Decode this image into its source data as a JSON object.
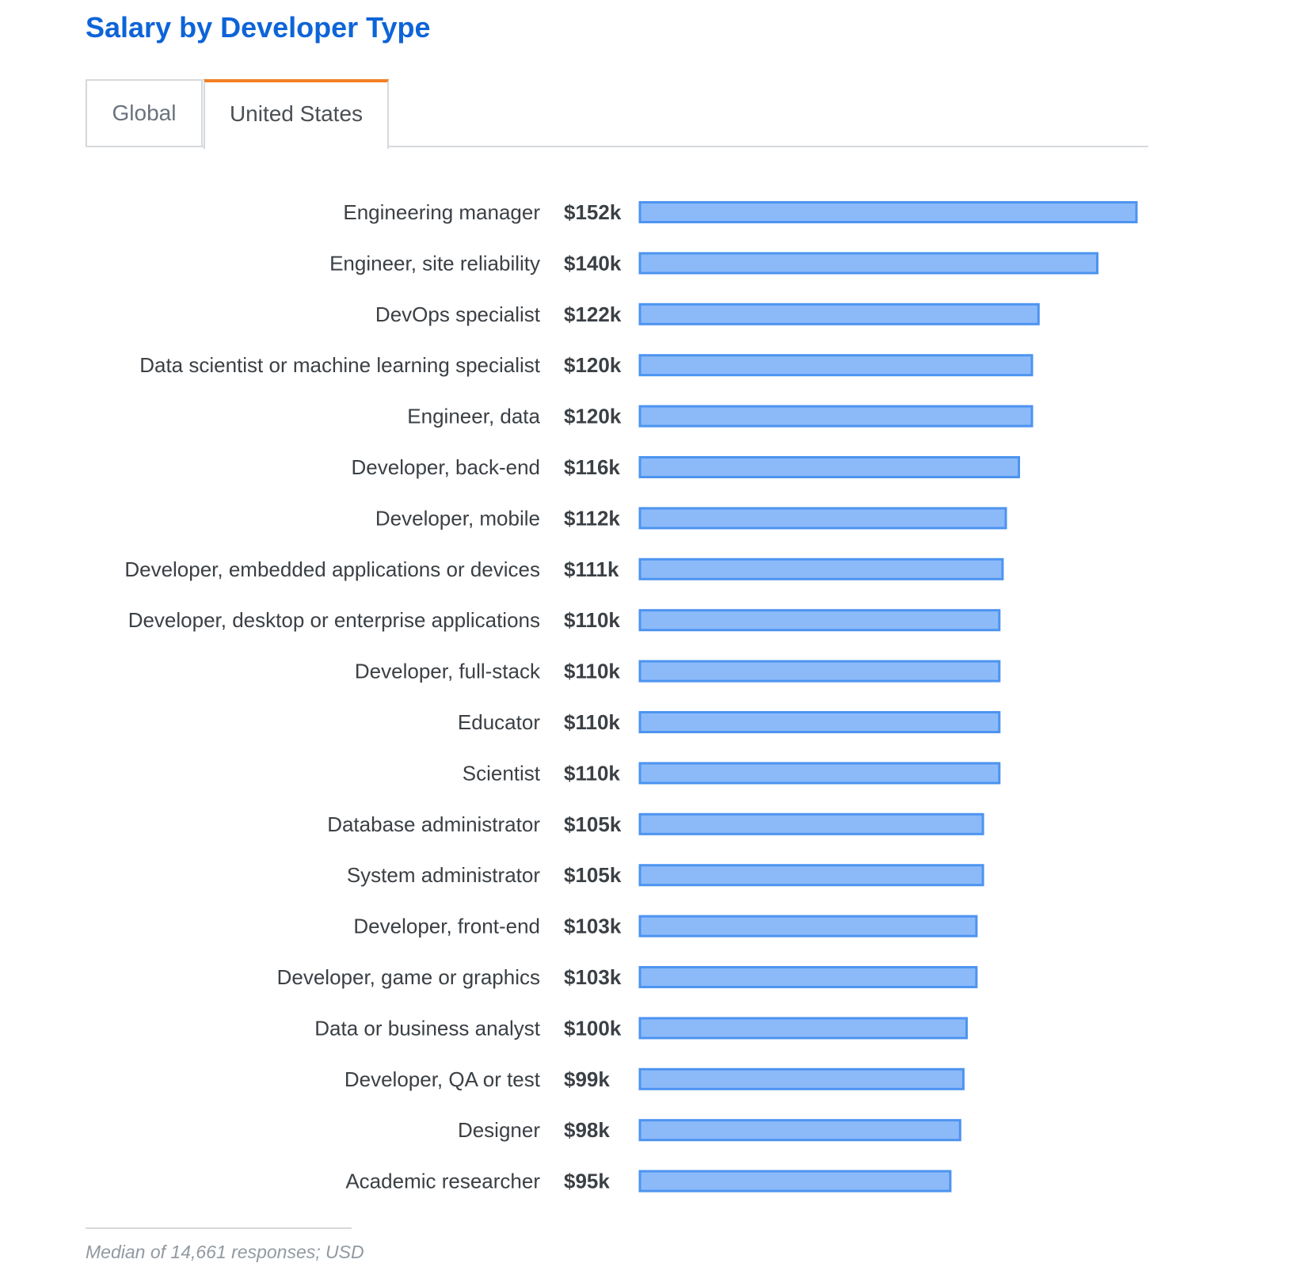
{
  "page": {
    "title": "Salary by Developer Type",
    "tabs": [
      {
        "label": "Global",
        "active": false
      },
      {
        "label": "United States",
        "active": true
      }
    ],
    "footnote": "Median of 14,661 responses; USD"
  },
  "colors": {
    "title": "#0d64d8",
    "active_tab_accent": "#f48024",
    "bar_fill": "#8cbaf9",
    "bar_stroke": "#4d94f0"
  },
  "chart_data": {
    "type": "bar",
    "orientation": "horizontal",
    "title": "Salary by Developer Type",
    "unit": "USD (thousands)",
    "xlim": [
      0,
      152
    ],
    "grid": false,
    "categories": [
      "Engineering manager",
      "Engineer, site reliability",
      "DevOps specialist",
      "Data scientist or machine learning specialist",
      "Engineer, data",
      "Developer, back-end",
      "Developer, mobile",
      "Developer, embedded applications or devices",
      "Developer, desktop or enterprise applications",
      "Developer, full-stack",
      "Educator",
      "Scientist",
      "Database administrator",
      "System administrator",
      "Developer, front-end",
      "Developer, game or graphics",
      "Data or business analyst",
      "Developer, QA or test",
      "Designer",
      "Academic researcher"
    ],
    "values": [
      152,
      140,
      122,
      120,
      120,
      116,
      112,
      111,
      110,
      110,
      110,
      110,
      105,
      105,
      103,
      103,
      100,
      99,
      98,
      95
    ],
    "value_labels": [
      "$152k",
      "$140k",
      "$122k",
      "$120k",
      "$120k",
      "$116k",
      "$112k",
      "$111k",
      "$110k",
      "$110k",
      "$110k",
      "$110k",
      "$105k",
      "$105k",
      "$103k",
      "$103k",
      "$100k",
      "$99k",
      "$98k",
      "$95k"
    ]
  }
}
